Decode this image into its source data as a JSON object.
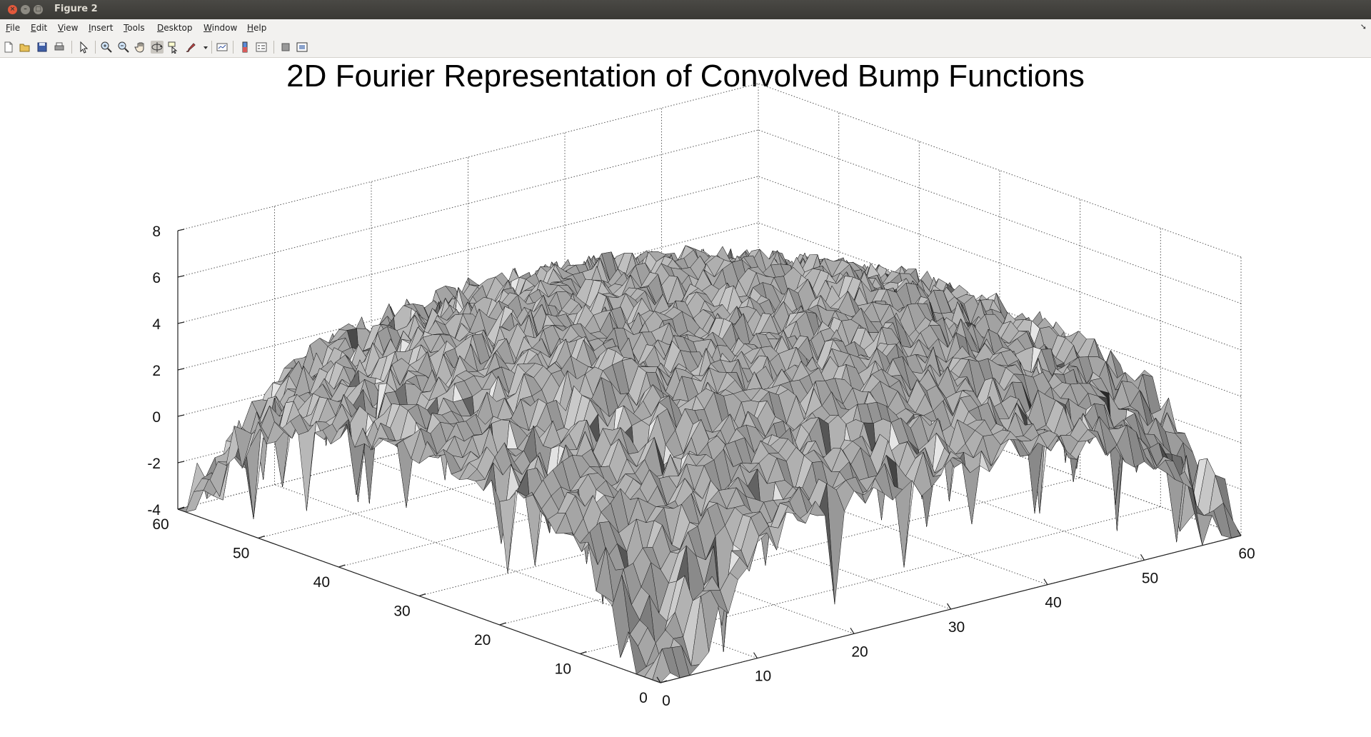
{
  "window": {
    "title": "Figure 2",
    "controls": {
      "close": "×",
      "minimize": "–",
      "maximize": "□"
    }
  },
  "menubar": {
    "items": [
      "File",
      "Edit",
      "View",
      "Insert",
      "Tools",
      "Desktop",
      "Window",
      "Help"
    ],
    "dock_icon": "dock-arrow-icon"
  },
  "toolbar": {
    "tools": [
      {
        "name": "new-figure",
        "icon": "new-figure-icon"
      },
      {
        "name": "open-file",
        "icon": "folder-open-icon"
      },
      {
        "name": "save-figure",
        "icon": "save-icon"
      },
      {
        "name": "print-figure",
        "icon": "print-icon"
      },
      {
        "name": "edit-plot",
        "icon": "arrow-pointer-icon"
      },
      {
        "name": "zoom-in",
        "icon": "zoom-in-icon"
      },
      {
        "name": "zoom-out",
        "icon": "zoom-out-icon"
      },
      {
        "name": "pan",
        "icon": "hand-icon"
      },
      {
        "name": "rotate-3d",
        "icon": "rotate-3d-icon",
        "pressed": true
      },
      {
        "name": "data-cursor",
        "icon": "data-cursor-icon"
      },
      {
        "name": "brush",
        "icon": "brush-icon"
      },
      {
        "name": "link-plot",
        "icon": "link-plot-icon"
      },
      {
        "name": "insert-colorbar",
        "icon": "colorbar-icon"
      },
      {
        "name": "insert-legend",
        "icon": "legend-icon"
      },
      {
        "name": "hide-plot-tools",
        "icon": "hide-tools-icon"
      },
      {
        "name": "show-plot-tools",
        "icon": "show-tools-icon"
      }
    ]
  },
  "chart_data": {
    "type": "surface",
    "title": "2D Fourier Representation of Convolved Bump Functions",
    "colormap": "gray",
    "grid": true,
    "xlim": [
      0,
      60
    ],
    "ylim": [
      0,
      60
    ],
    "zlim": [
      -4,
      8
    ],
    "xticks": [
      "0",
      "10",
      "20",
      "30",
      "40",
      "50",
      "60"
    ],
    "yticks": [
      "0",
      "10",
      "20",
      "30",
      "40",
      "50",
      "60"
    ],
    "zticks": [
      "-4",
      "-2",
      "0",
      "2",
      "4",
      "6",
      "8"
    ],
    "surface": {
      "grid_size": 60,
      "plateau_level": 4.5,
      "dip_locations": [
        {
          "x": 0,
          "y": 0,
          "min": -4
        },
        {
          "x": 0,
          "y": 60,
          "min": -2
        },
        {
          "x": 60,
          "y": 0,
          "min": -2
        },
        {
          "x": 60,
          "y": 60,
          "min": -3
        }
      ]
    }
  }
}
